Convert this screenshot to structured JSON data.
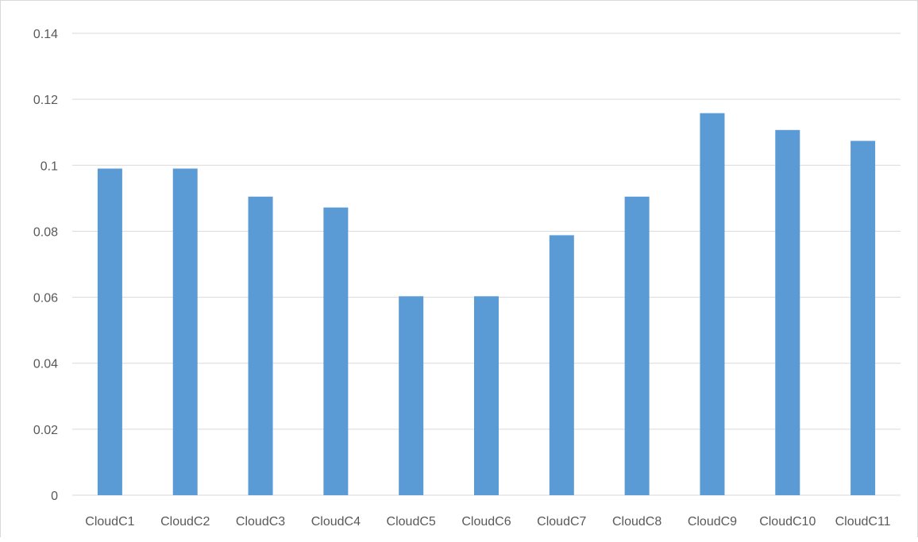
{
  "chart_data": {
    "type": "bar",
    "title": "",
    "xlabel": "",
    "ylabel": "",
    "categories": [
      "CloudC1",
      "CloudC2",
      "CloudC3",
      "CloudC4",
      "CloudC5",
      "CloudC6",
      "CloudC7",
      "CloudC8",
      "CloudC9",
      "CloudC10",
      "CloudC11"
    ],
    "values": [
      0.099,
      0.099,
      0.0905,
      0.0872,
      0.0603,
      0.0603,
      0.0788,
      0.0905,
      0.1158,
      0.1107,
      0.1074
    ],
    "ylim": [
      0,
      0.14
    ],
    "yticks": [
      "0",
      "0.02",
      "0.04",
      "0.06",
      "0.08",
      "0.1",
      "0.12",
      "0.14"
    ],
    "grid": true,
    "legend": "none",
    "bar_color": "#5b9bd5",
    "grid_color": "#d9d9d9"
  }
}
